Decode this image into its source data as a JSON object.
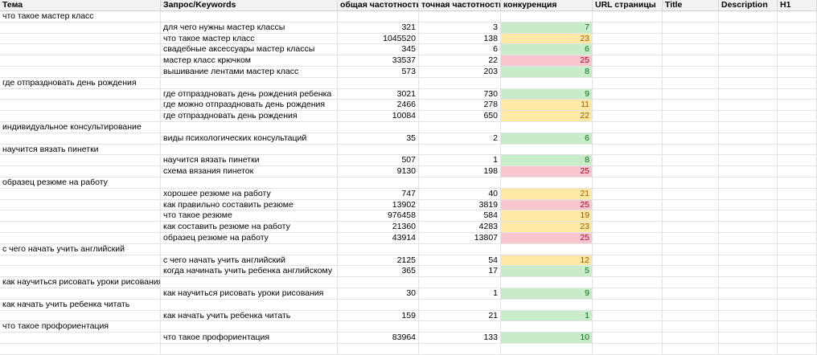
{
  "headers": {
    "topic": "Тема",
    "keyword": "Запрос/Keywords",
    "total": "общая частотность",
    "exact": "точная частотность",
    "competition": "конкуренция",
    "url": "URL страницы",
    "title": "Title",
    "description": "Description",
    "h1": "H1"
  },
  "colors": {
    "low": "#c8ecc9",
    "mid": "#fde8a6",
    "high": "#f9c5ce"
  },
  "rows": [
    {
      "type": "topic",
      "topic": "что такое мастер класс"
    },
    {
      "type": "kw",
      "keyword": "для чего нужны мастер классы",
      "total": "321",
      "exact": "3",
      "comp": "7",
      "level": "low"
    },
    {
      "type": "kw",
      "keyword": "что такое мастер класс",
      "total": "1045520",
      "exact": "138",
      "comp": "23",
      "level": "mid"
    },
    {
      "type": "kw",
      "keyword": "свадебные аксессуары мастер классы",
      "total": "345",
      "exact": "6",
      "comp": "6",
      "level": "low"
    },
    {
      "type": "kw",
      "keyword": "мастер класс крючком",
      "total": "33537",
      "exact": "22",
      "comp": "25",
      "level": "high"
    },
    {
      "type": "kw",
      "keyword": "вышивание лентами мастер класс",
      "total": "573",
      "exact": "203",
      "comp": "8",
      "level": "low"
    },
    {
      "type": "topic",
      "topic": "где отпраздновать день рождения"
    },
    {
      "type": "kw",
      "keyword": "где отпраздновать день рождения ребенка",
      "total": "3021",
      "exact": "730",
      "comp": "9",
      "level": "low"
    },
    {
      "type": "kw",
      "keyword": "где можно отпраздновать день рождения",
      "total": "2466",
      "exact": "278",
      "comp": "11",
      "level": "mid"
    },
    {
      "type": "kw",
      "keyword": "где отпраздновать день рождения",
      "total": "10084",
      "exact": "650",
      "comp": "22",
      "level": "mid"
    },
    {
      "type": "topic",
      "topic": "индивидуальное консультирование"
    },
    {
      "type": "kw",
      "keyword": "виды психологических консультаций",
      "total": "35",
      "exact": "2",
      "comp": "6",
      "level": "low"
    },
    {
      "type": "topic",
      "topic": "научится вязать пинетки"
    },
    {
      "type": "kw",
      "keyword": "научится вязать пинетки",
      "total": "507",
      "exact": "1",
      "comp": "8",
      "level": "low"
    },
    {
      "type": "kw",
      "keyword": "схема вязания пинеток",
      "total": "9130",
      "exact": "198",
      "comp": "25",
      "level": "high"
    },
    {
      "type": "topic",
      "topic": "образец резюме на работу"
    },
    {
      "type": "kw",
      "keyword": "хорошее резюме на работу",
      "total": "747",
      "exact": "40",
      "comp": "21",
      "level": "mid"
    },
    {
      "type": "kw",
      "keyword": "как правильно составить резюме",
      "total": "13902",
      "exact": "3819",
      "comp": "25",
      "level": "high"
    },
    {
      "type": "kw",
      "keyword": "что такое резюме",
      "total": "976458",
      "exact": "584",
      "comp": "19",
      "level": "mid"
    },
    {
      "type": "kw",
      "keyword": "как составить резюме на работу",
      "total": "21360",
      "exact": "4283",
      "comp": "23",
      "level": "mid"
    },
    {
      "type": "kw",
      "keyword": "образец резюме на работу",
      "total": "43914",
      "exact": "13807",
      "comp": "25",
      "level": "high"
    },
    {
      "type": "topic",
      "topic": "с чего начать учить английский"
    },
    {
      "type": "kw",
      "keyword": "с чего начать учить английский",
      "total": "2125",
      "exact": "54",
      "comp": "12",
      "level": "mid"
    },
    {
      "type": "kw",
      "keyword": "когда начинать учить ребенка английскому",
      "total": "365",
      "exact": "17",
      "comp": "5",
      "level": "low"
    },
    {
      "type": "topic",
      "topic": "как научиться рисовать уроки рисования"
    },
    {
      "type": "kw",
      "keyword": "как научиться рисовать уроки рисования",
      "total": "30",
      "exact": "1",
      "comp": "9",
      "level": "low"
    },
    {
      "type": "topic",
      "topic": "как начать учить ребенка читать"
    },
    {
      "type": "kw",
      "keyword": "как начать учить ребенка читать",
      "total": "159",
      "exact": "21",
      "comp": "1",
      "level": "low"
    },
    {
      "type": "topic",
      "topic": "что такое профориентация"
    },
    {
      "type": "kw",
      "keyword": "что такое профориентация",
      "total": "83964",
      "exact": "133",
      "comp": "10",
      "level": "low"
    },
    {
      "type": "empty"
    }
  ]
}
